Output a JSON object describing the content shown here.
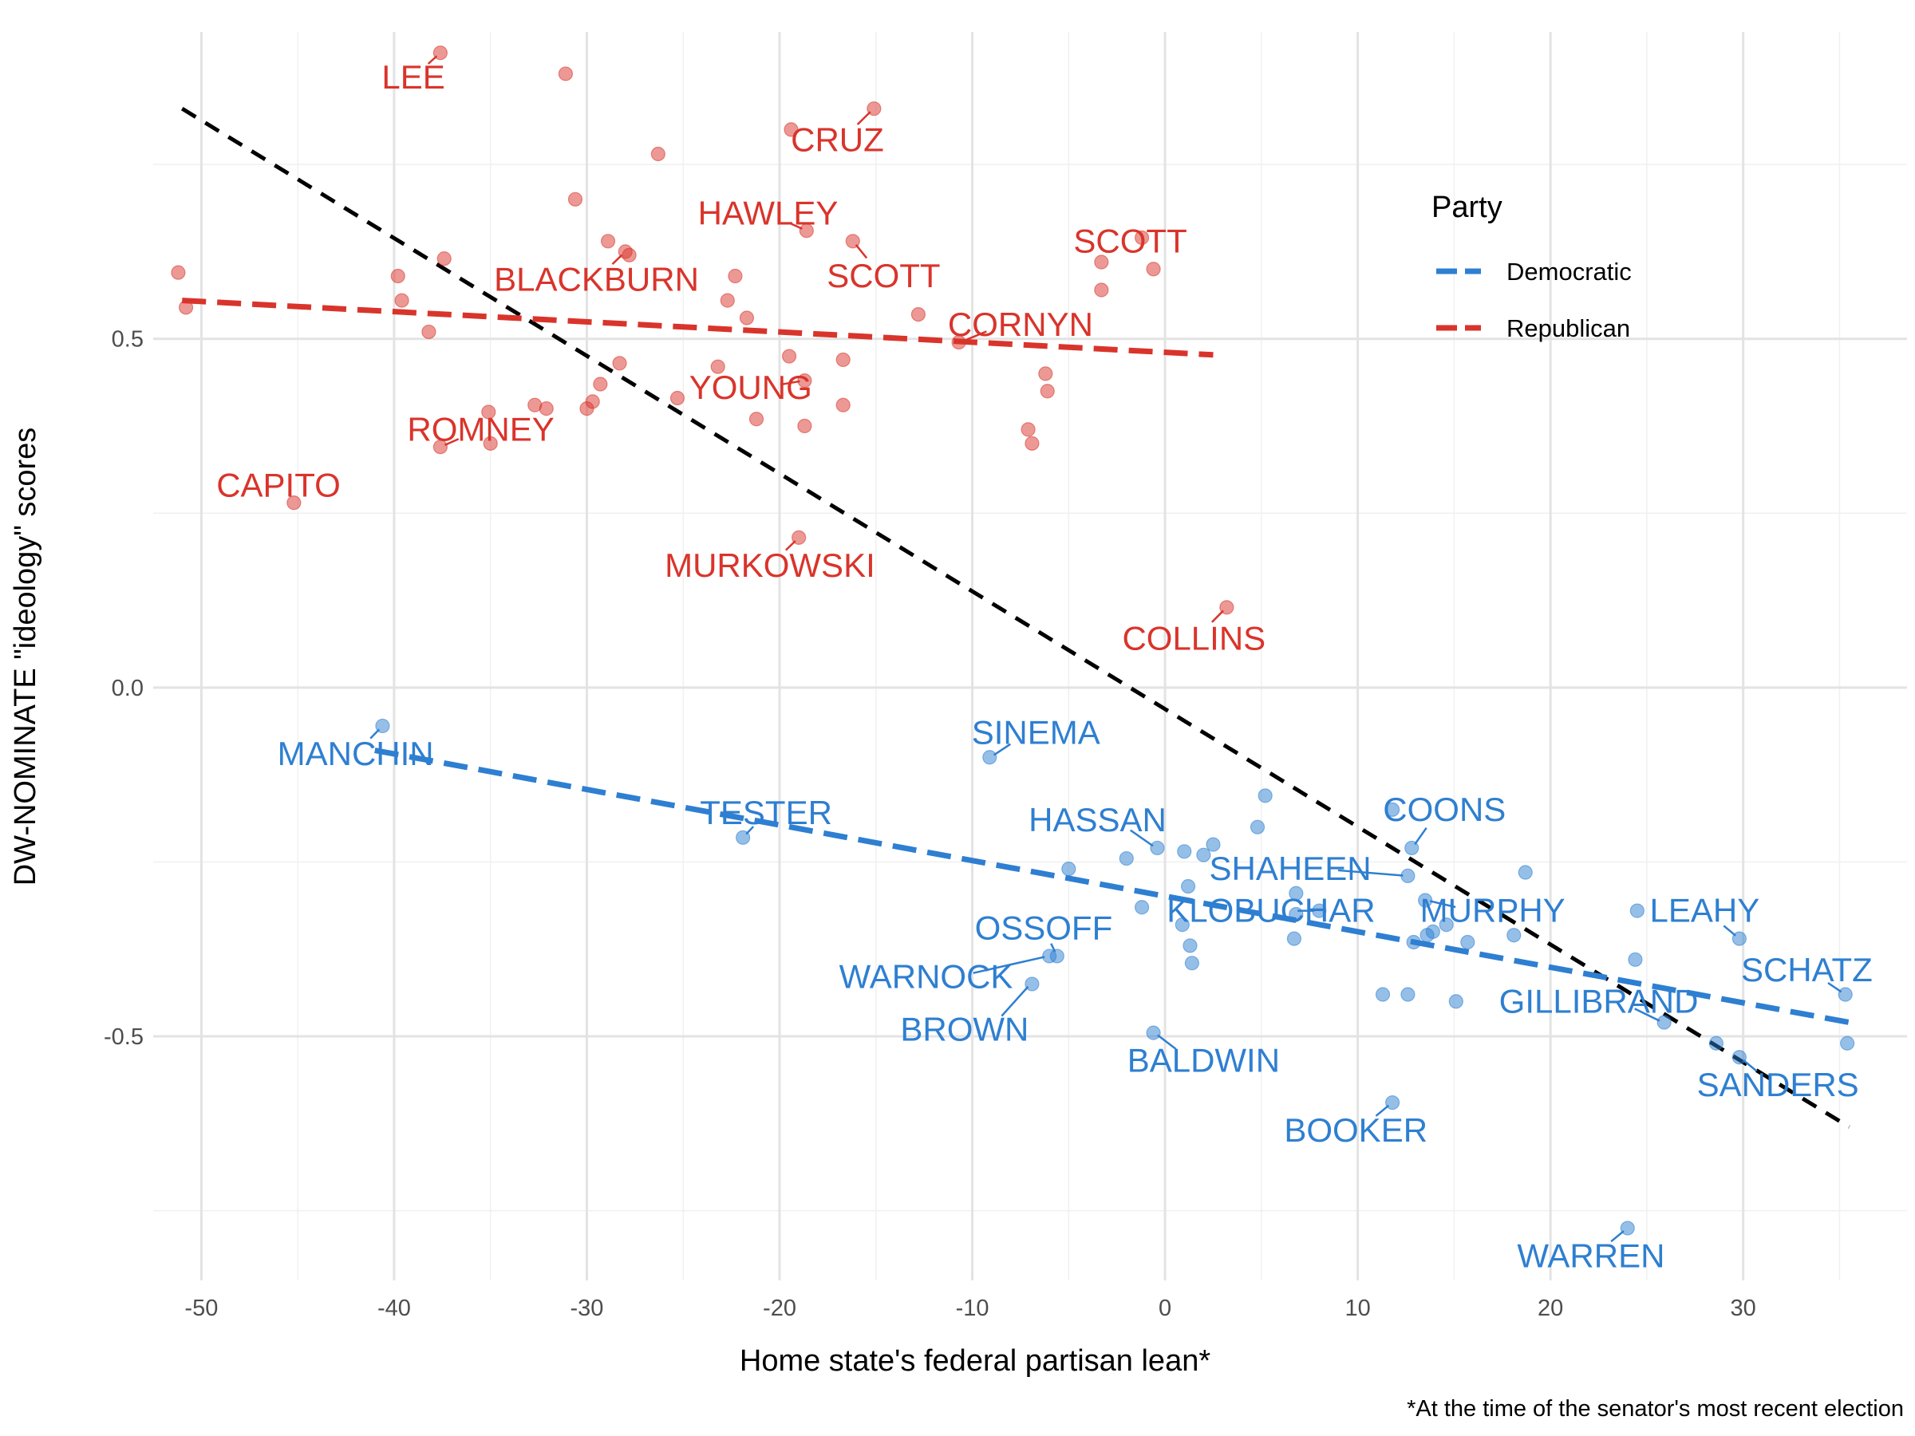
{
  "chart_data": {
    "type": "scatter",
    "xlabel": "Home state's federal partisan lean*",
    "ylabel": "DW-NOMINATE \"ideology\" scores",
    "caption": "*At the time of the senator's most recent election",
    "xlim": [
      -52.5,
      38.5
    ],
    "ylim": [
      -0.85,
      0.94
    ],
    "xticks": [
      -50,
      -40,
      -30,
      -20,
      -10,
      0,
      10,
      20,
      30
    ],
    "xtick_labels": [
      "-50",
      "-40",
      "-30",
      "-20",
      "-10",
      "0",
      "10",
      "20",
      "30"
    ],
    "yticks": [
      -0.5,
      0.0,
      0.5
    ],
    "ytick_labels": [
      "-0.5",
      "0.0",
      "0.5"
    ],
    "grid": true,
    "legend": {
      "title": "Party",
      "position": "top-right",
      "items": [
        {
          "label": "Democratic",
          "color": "#2e7fd1"
        },
        {
          "label": "Republican",
          "color": "#d9342b"
        }
      ]
    },
    "colors": {
      "Democratic": "#2e7fd1",
      "Republican": "#d9342b",
      "overall": "#000000"
    },
    "trend_lines": [
      {
        "group": "overall",
        "x": [
          -51,
          35.5
        ],
        "y": [
          0.83,
          -0.63
        ]
      },
      {
        "group": "Republican",
        "x": [
          -51,
          2.5
        ],
        "y": [
          0.555,
          0.477
        ]
      },
      {
        "group": "Democratic",
        "x": [
          -41,
          35.5
        ],
        "y": [
          -0.09,
          -0.48
        ]
      }
    ],
    "series": [
      {
        "name": "Republican",
        "color": "#d9342b",
        "points": [
          {
            "x": -37.6,
            "y": 0.91,
            "label": "LEE",
            "lx": -39.0,
            "ly": 0.875
          },
          {
            "x": -15.1,
            "y": 0.83,
            "label": "CRUZ",
            "lx": -17.0,
            "ly": 0.785
          },
          {
            "x": -18.6,
            "y": 0.655,
            "label": "HAWLEY",
            "lx": -20.6,
            "ly": 0.68
          },
          {
            "x": -16.2,
            "y": 0.64,
            "label": "SCOTT",
            "lx": -14.6,
            "ly": 0.59
          },
          {
            "x": -1.2,
            "y": 0.645,
            "label": "SCOTT",
            "lx": -1.8,
            "ly": 0.64
          },
          {
            "x": -28.0,
            "y": 0.625,
            "label": "BLACKBURN",
            "lx": -29.5,
            "ly": 0.585
          },
          {
            "x": -10.7,
            "y": 0.495,
            "label": "CORNYN",
            "lx": -7.5,
            "ly": 0.52
          },
          {
            "x": -18.7,
            "y": 0.44,
            "label": "YOUNG",
            "lx": -21.5,
            "ly": 0.43
          },
          {
            "x": -37.6,
            "y": 0.345,
            "label": "ROMNEY",
            "lx": -35.5,
            "ly": 0.37
          },
          {
            "x": -45.2,
            "y": 0.265,
            "label": "CAPITO",
            "lx": -46.0,
            "ly": 0.29
          },
          {
            "x": -19.0,
            "y": 0.215,
            "label": "MURKOWSKI",
            "lx": -20.5,
            "ly": 0.175
          },
          {
            "x": 3.2,
            "y": 0.115,
            "label": "COLLINS",
            "lx": 1.5,
            "ly": 0.07
          },
          {
            "x": -51.2,
            "y": 0.595
          },
          {
            "x": -50.8,
            "y": 0.545
          },
          {
            "x": -39.8,
            "y": 0.59
          },
          {
            "x": -39.6,
            "y": 0.555
          },
          {
            "x": -38.2,
            "y": 0.51
          },
          {
            "x": -37.4,
            "y": 0.615
          },
          {
            "x": -35.1,
            "y": 0.395
          },
          {
            "x": -35.0,
            "y": 0.35
          },
          {
            "x": -32.7,
            "y": 0.405
          },
          {
            "x": -32.1,
            "y": 0.4
          },
          {
            "x": -31.1,
            "y": 0.88
          },
          {
            "x": -30.6,
            "y": 0.7
          },
          {
            "x": -30.0,
            "y": 0.4
          },
          {
            "x": -29.7,
            "y": 0.41
          },
          {
            "x": -29.3,
            "y": 0.435
          },
          {
            "x": -28.9,
            "y": 0.64
          },
          {
            "x": -28.3,
            "y": 0.465
          },
          {
            "x": -27.8,
            "y": 0.62
          },
          {
            "x": -26.3,
            "y": 0.765
          },
          {
            "x": -25.3,
            "y": 0.415
          },
          {
            "x": -23.2,
            "y": 0.46
          },
          {
            "x": -22.7,
            "y": 0.555
          },
          {
            "x": -22.3,
            "y": 0.59
          },
          {
            "x": -21.7,
            "y": 0.53
          },
          {
            "x": -21.2,
            "y": 0.385
          },
          {
            "x": -19.5,
            "y": 0.475
          },
          {
            "x": -19.4,
            "y": 0.8
          },
          {
            "x": -18.7,
            "y": 0.375
          },
          {
            "x": -16.7,
            "y": 0.47
          },
          {
            "x": -16.7,
            "y": 0.405
          },
          {
            "x": -12.8,
            "y": 0.535
          },
          {
            "x": -7.1,
            "y": 0.37
          },
          {
            "x": -6.9,
            "y": 0.35
          },
          {
            "x": -6.2,
            "y": 0.45
          },
          {
            "x": -6.1,
            "y": 0.425
          },
          {
            "x": -3.3,
            "y": 0.61
          },
          {
            "x": -3.3,
            "y": 0.57
          },
          {
            "x": -0.6,
            "y": 0.6
          }
        ]
      },
      {
        "name": "Democratic",
        "color": "#2e7fd1",
        "points": [
          {
            "x": -40.6,
            "y": -0.055,
            "label": "MANCHIN",
            "lx": -42.0,
            "ly": -0.095
          },
          {
            "x": -9.1,
            "y": -0.1,
            "label": "SINEMA",
            "lx": -6.7,
            "ly": -0.065
          },
          {
            "x": -21.9,
            "y": -0.215,
            "label": "TESTER",
            "lx": -20.7,
            "ly": -0.18
          },
          {
            "x": -0.4,
            "y": -0.23,
            "label": "HASSAN",
            "lx": -3.5,
            "ly": -0.19
          },
          {
            "x": 12.8,
            "y": -0.23,
            "label": "COONS",
            "lx": 14.5,
            "ly": -0.175
          },
          {
            "x": 12.6,
            "y": -0.27,
            "label": "SHAHEEN",
            "lx": 6.5,
            "ly": -0.26
          },
          {
            "x": 8.0,
            "y": -0.32,
            "label": "KLOBUCHAR",
            "lx": 5.5,
            "ly": -0.32
          },
          {
            "x": 13.5,
            "y": -0.305,
            "label": "MURPHY",
            "lx": 17.0,
            "ly": -0.32
          },
          {
            "x": 29.8,
            "y": -0.36,
            "label": "LEAHY",
            "lx": 28.0,
            "ly": -0.32
          },
          {
            "x": -5.6,
            "y": -0.385,
            "label": "OSSOFF",
            "lx": -6.3,
            "ly": -0.345
          },
          {
            "x": -6.0,
            "y": -0.385,
            "label": "WARNOCK",
            "lx": -12.4,
            "ly": -0.415
          },
          {
            "x": -6.9,
            "y": -0.425,
            "label": "BROWN",
            "lx": -10.4,
            "ly": -0.49
          },
          {
            "x": 35.3,
            "y": -0.44,
            "label": "SCHATZ",
            "lx": 33.3,
            "ly": -0.405
          },
          {
            "x": 25.9,
            "y": -0.48,
            "label": "GILLIBRAND",
            "lx": 22.5,
            "ly": -0.45
          },
          {
            "x": -0.6,
            "y": -0.495,
            "label": "BALDWIN",
            "lx": 2.0,
            "ly": -0.535
          },
          {
            "x": 29.8,
            "y": -0.53,
            "label": "SANDERS",
            "lx": 31.8,
            "ly": -0.57
          },
          {
            "x": 11.8,
            "y": -0.595,
            "label": "BOOKER",
            "lx": 9.9,
            "ly": -0.635
          },
          {
            "x": 24.0,
            "y": -0.775,
            "label": "WARREN",
            "lx": 22.1,
            "ly": -0.815
          },
          {
            "x": -5.0,
            "y": -0.26
          },
          {
            "x": -2.0,
            "y": -0.245
          },
          {
            "x": -1.2,
            "y": -0.315
          },
          {
            "x": 0.9,
            "y": -0.34
          },
          {
            "x": 1.0,
            "y": -0.235
          },
          {
            "x": 1.2,
            "y": -0.285
          },
          {
            "x": 1.3,
            "y": -0.37
          },
          {
            "x": 1.4,
            "y": -0.395
          },
          {
            "x": 2.0,
            "y": -0.24
          },
          {
            "x": 2.5,
            "y": -0.225
          },
          {
            "x": 4.8,
            "y": -0.2
          },
          {
            "x": 5.2,
            "y": -0.155
          },
          {
            "x": 6.7,
            "y": -0.36
          },
          {
            "x": 6.8,
            "y": -0.295
          },
          {
            "x": 6.8,
            "y": -0.325
          },
          {
            "x": 11.3,
            "y": -0.44
          },
          {
            "x": 11.8,
            "y": -0.175
          },
          {
            "x": 12.6,
            "y": -0.44
          },
          {
            "x": 12.9,
            "y": -0.365
          },
          {
            "x": 13.6,
            "y": -0.355
          },
          {
            "x": 13.9,
            "y": -0.35
          },
          {
            "x": 14.6,
            "y": -0.34
          },
          {
            "x": 15.1,
            "y": -0.45
          },
          {
            "x": 15.7,
            "y": -0.365
          },
          {
            "x": 18.1,
            "y": -0.355
          },
          {
            "x": 18.7,
            "y": -0.265
          },
          {
            "x": 24.4,
            "y": -0.39
          },
          {
            "x": 24.5,
            "y": -0.32
          },
          {
            "x": 28.6,
            "y": -0.51
          },
          {
            "x": 35.4,
            "y": -0.51
          }
        ]
      }
    ]
  }
}
